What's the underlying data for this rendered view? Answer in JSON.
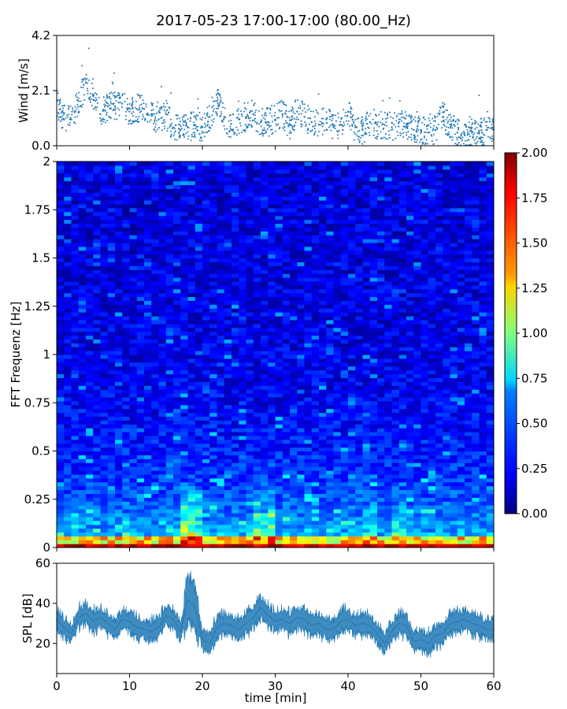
{
  "figure": {
    "title": "2017-05-23 17:00-17:00 (80.00_Hz)"
  },
  "chart_data": [
    {
      "type": "scatter",
      "panel": "wind",
      "ylabel": "Wind [m/s]",
      "yticks": [
        "0.0",
        "2.1",
        "4.2"
      ],
      "ylim": [
        0,
        4.2
      ],
      "xlim": [
        0,
        60
      ],
      "color": "#1f77b4",
      "description_series": "Wind speed samples (dots)",
      "series": [
        {
          "x": [
            0,
            1,
            2,
            3,
            4,
            5,
            6,
            7,
            8,
            9,
            10,
            11,
            12,
            13,
            14,
            15,
            16,
            17,
            18,
            19,
            20,
            21,
            22,
            23,
            24,
            25,
            26,
            27,
            28,
            29,
            30,
            31,
            32,
            33,
            34,
            35,
            36,
            37,
            38,
            39,
            40,
            41,
            42,
            43,
            44,
            45,
            46,
            47,
            48,
            49,
            50,
            51,
            52,
            53,
            54,
            55,
            56,
            57,
            58,
            59,
            60
          ],
          "y": [
            1.7,
            1.0,
            1.0,
            1.7,
            2.4,
            1.9,
            1.2,
            1.5,
            1.5,
            1.6,
            1.3,
            1.4,
            1.4,
            1.2,
            1.0,
            1.2,
            0.7,
            0.6,
            0.7,
            0.8,
            0.7,
            1.1,
            1.7,
            1.1,
            0.6,
            1.0,
            1.1,
            1.2,
            0.9,
            0.9,
            1.0,
            1.2,
            0.8,
            1.3,
            1.1,
            0.9,
            0.8,
            1.0,
            0.8,
            0.8,
            1.3,
            0.7,
            0.6,
            0.9,
            0.8,
            0.8,
            0.7,
            0.9,
            0.8,
            0.6,
            0.6,
            0.5,
            0.6,
            1.1,
            0.8,
            0.5,
            0.4,
            0.5,
            0.5,
            0.6,
            0.6
          ]
        }
      ]
    },
    {
      "type": "heatmap",
      "panel": "spectrogram",
      "ylabel": "FFT Frequenz [Hz]",
      "yticks": [
        "0",
        "0.25",
        "0.5",
        "0.75",
        "1",
        "1.25",
        "1.5",
        "1.75",
        "2"
      ],
      "ylim": [
        0,
        2
      ],
      "xlim": [
        0,
        60
      ],
      "colormap": "jet",
      "colorbar": {
        "ticks": [
          "0.00",
          "0.25",
          "0.50",
          "0.75",
          "1.00",
          "1.25",
          "1.50",
          "1.75",
          "2.00"
        ],
        "range": [
          0,
          2
        ]
      },
      "description_values": "Spectral power, high near 0 Hz, peak between 17 and 20 min and around 28-30 min"
    },
    {
      "type": "line",
      "panel": "spl",
      "ylabel": "SPL [dB]",
      "yticks": [
        "20",
        "40",
        "60"
      ],
      "ylim": [
        5,
        60
      ],
      "xlim": [
        0,
        60
      ],
      "xlabel": "time [min]",
      "xticks": [
        "0",
        "10",
        "20",
        "30",
        "40",
        "50",
        "60"
      ],
      "color": "#1f77b4",
      "series": [
        {
          "x": [
            0,
            1,
            2,
            3,
            4,
            5,
            6,
            7,
            8,
            9,
            10,
            11,
            12,
            13,
            14,
            15,
            16,
            17,
            18,
            19,
            20,
            21,
            22,
            23,
            24,
            25,
            26,
            27,
            28,
            29,
            30,
            31,
            32,
            33,
            34,
            35,
            36,
            37,
            38,
            39,
            40,
            41,
            42,
            43,
            44,
            45,
            46,
            47,
            48,
            49,
            50,
            51,
            52,
            53,
            54,
            55,
            56,
            57,
            58,
            59,
            60
          ],
          "y": [
            32,
            28,
            25,
            33,
            35,
            31,
            33,
            30,
            27,
            32,
            31,
            28,
            27,
            26,
            28,
            34,
            32,
            26,
            42,
            38,
            22,
            20,
            28,
            30,
            29,
            27,
            30,
            33,
            38,
            34,
            31,
            32,
            30,
            33,
            32,
            29,
            30,
            27,
            27,
            31,
            32,
            29,
            30,
            29,
            25,
            20,
            26,
            30,
            29,
            21,
            22,
            20,
            24,
            25,
            30,
            31,
            32,
            30,
            29,
            27,
            27
          ]
        }
      ]
    }
  ],
  "colors": {
    "series": "#1f77b4",
    "axis": "#000000"
  }
}
